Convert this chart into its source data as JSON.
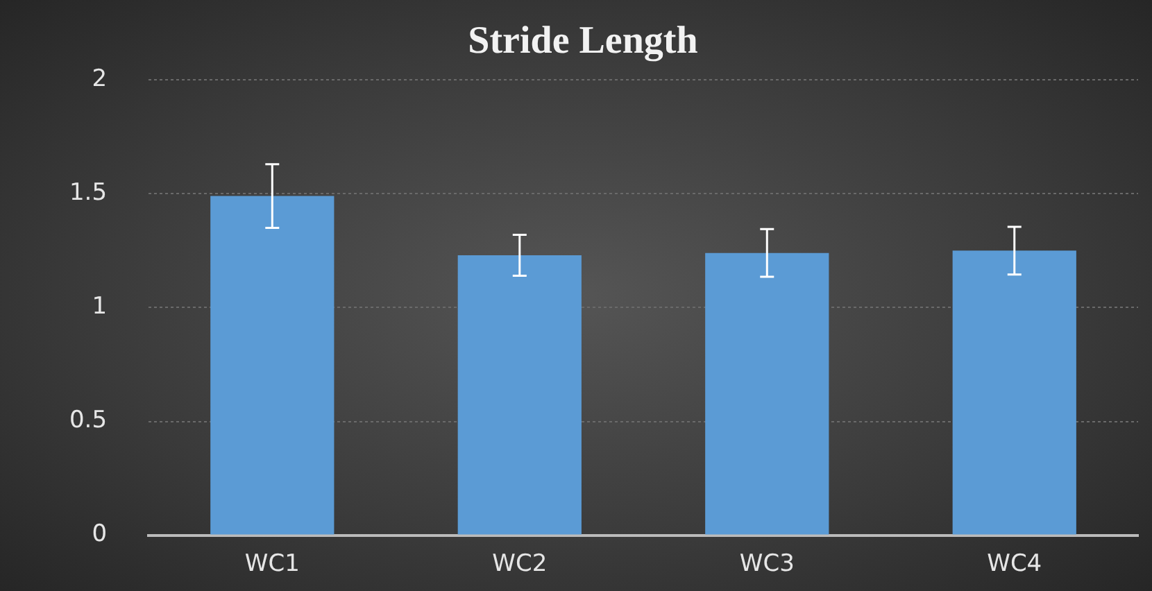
{
  "chart_data": {
    "type": "bar",
    "title": "Stride Length",
    "categories": [
      "WC1",
      "WC2",
      "WC3",
      "WC4"
    ],
    "values": [
      1.49,
      1.23,
      1.24,
      1.25
    ],
    "errors": [
      0.14,
      0.09,
      0.105,
      0.105
    ],
    "color": "#5b9bd5",
    "ylim": [
      0,
      2
    ],
    "yticks": [
      0,
      0.5,
      1,
      1.5,
      2
    ],
    "grid": "y"
  }
}
